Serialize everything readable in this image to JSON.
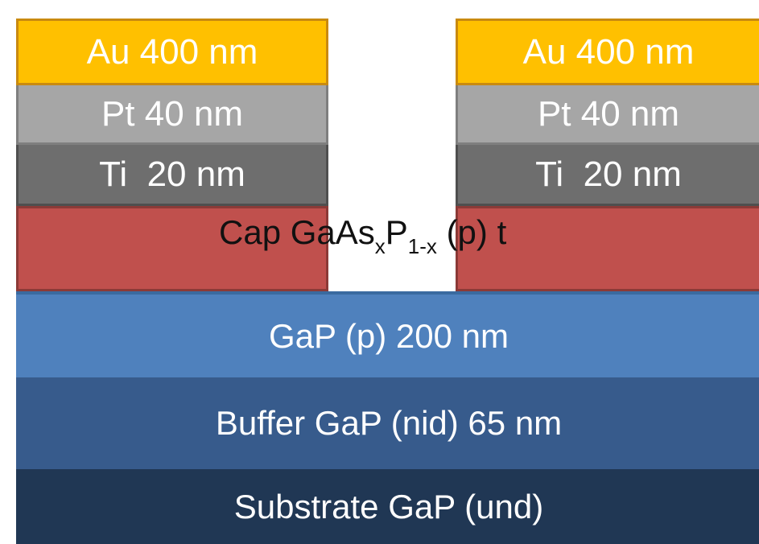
{
  "left_contact": {
    "au_label": "Au 400 nm",
    "pt_label": "Pt 40 nm",
    "ti_label": "Ti  20 nm"
  },
  "right_contact": {
    "au_label": "Au 400 nm",
    "pt_label": "Pt 40 nm",
    "ti_label": "Ti  20 nm"
  },
  "cap": {
    "prefix": "Cap GaAs",
    "sub_x": "x",
    "mid": "P",
    "sub_1x": "1-x",
    "suffix": " (p) t"
  },
  "layers": {
    "gap": "GaP (p) 200 nm",
    "buffer": "Buffer GaP (nid) 65 nm",
    "substrate": "Substrate GaP (und)"
  },
  "colors": {
    "au": "#ffc000",
    "pt": "#a6a6a6",
    "ti": "#6e6e6e",
    "cap": "#c0504d",
    "gap": "#4f81bd",
    "buffer": "#375b8c",
    "substrate": "#203754"
  }
}
